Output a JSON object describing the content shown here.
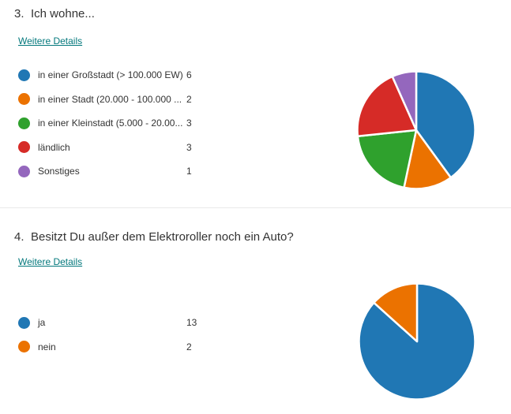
{
  "palette": {
    "blue": "#2077B4",
    "orange": "#EB7200",
    "green": "#2FA12D",
    "red": "#D62B27",
    "purple": "#9467BD",
    "link": "#03787C",
    "divider": "#e9e9e9",
    "text": "#333333"
  },
  "questions": [
    {
      "number": "3.",
      "title": "Ich wohne...",
      "details_label": "Weitere Details"
    },
    {
      "number": "4.",
      "title": "Besitzt Du außer dem Elektroroller noch ein Auto?",
      "details_label": "Weitere Details"
    }
  ],
  "chart_data": [
    {
      "type": "pie",
      "title": "3. Ich wohne...",
      "categories": [
        "in einer Großstadt (> 100.000 EW)",
        "in einer Stadt (20.000 - 100.000 ...",
        "in einer Kleinstadt (5.000 - 20.00...",
        "ländlich",
        "Sonstiges"
      ],
      "values": [
        6,
        2,
        3,
        3,
        1
      ],
      "colors": [
        "#2077B4",
        "#EB7200",
        "#2FA12D",
        "#D62B27",
        "#9467BD"
      ],
      "total_responses": 15,
      "start_angle_deg": 0,
      "direction": "clockwise",
      "legend_position": "left",
      "slice_gap_color": "#ffffff"
    },
    {
      "type": "pie",
      "title": "4. Besitzt Du außer dem Elektroroller noch ein Auto?",
      "categories": [
        "ja",
        "nein"
      ],
      "values": [
        13,
        2
      ],
      "colors": [
        "#2077B4",
        "#EB7200"
      ],
      "total_responses": 15,
      "start_angle_deg": 0,
      "direction": "clockwise",
      "legend_position": "left",
      "slice_gap_color": "#ffffff"
    }
  ]
}
